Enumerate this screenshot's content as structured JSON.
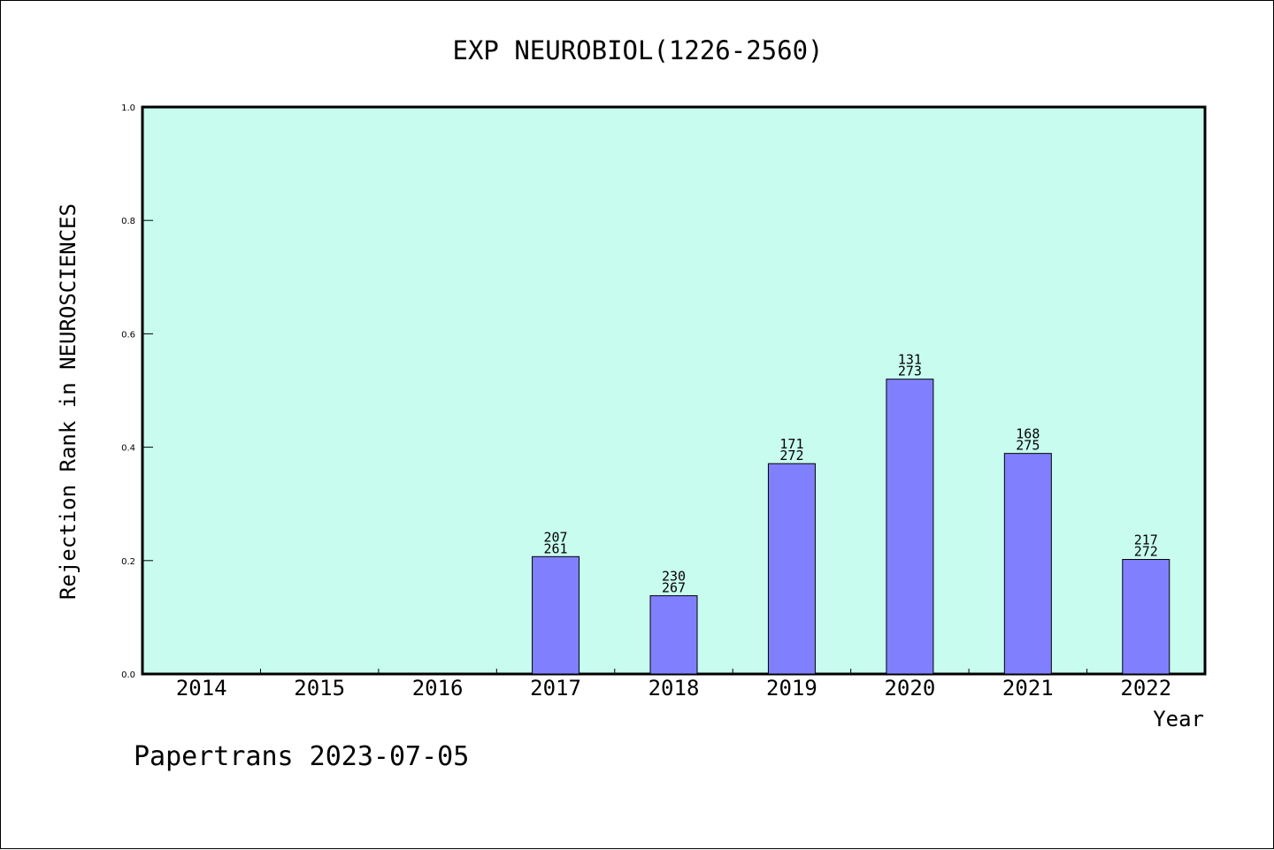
{
  "footer": "Papertrans 2023-07-05",
  "colors": {
    "plot_background": "#c8fcee",
    "bar_fill": "#8080ff",
    "bar_stroke": "#000000",
    "axis": "#000000"
  },
  "chart_data": {
    "type": "bar",
    "title": "EXP NEUROBIOL(1226-2560)",
    "xlabel": "Year",
    "ylabel": "Rejection Rank in NEUROSCIENCES",
    "ylim": [
      0,
      1.0
    ],
    "yticks": [
      "0.0",
      "0.2",
      "0.4",
      "0.6",
      "0.8",
      "1.0"
    ],
    "categories": [
      "2014",
      "2015",
      "2016",
      "2017",
      "2018",
      "2019",
      "2020",
      "2021",
      "2022"
    ],
    "values": [
      null,
      null,
      null,
      0.207,
      0.138,
      0.371,
      0.52,
      0.389,
      0.202
    ],
    "labels_top": [
      null,
      null,
      null,
      "207",
      "230",
      "171",
      "131",
      "168",
      "217"
    ],
    "labels_bottom": [
      null,
      null,
      null,
      "261",
      "267",
      "272",
      "273",
      "275",
      "272"
    ],
    "grid": false,
    "legend": "none"
  }
}
